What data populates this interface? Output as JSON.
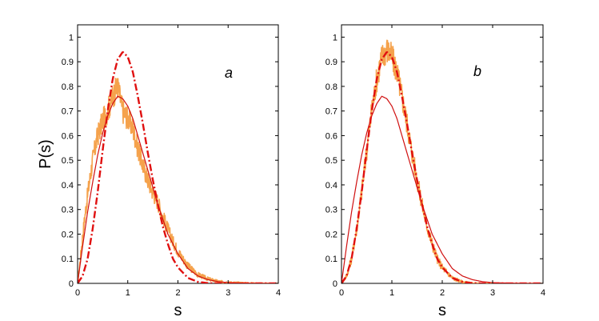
{
  "chart_data": [
    {
      "type": "line",
      "panel_label": "a",
      "xlabel": "s",
      "ylabel": "P(s)",
      "xlim": [
        0,
        4
      ],
      "ylim": [
        0,
        1.05
      ],
      "xticks": [
        "0",
        "1",
        "2",
        "3",
        "4"
      ],
      "yticks": [
        "0",
        "0.1",
        "0.2",
        "0.3",
        "0.4",
        "0.5",
        "0.6",
        "0.7",
        "0.8",
        "0.9",
        "1"
      ],
      "grid": false,
      "series": [
        {
          "style": "noisy-histogram",
          "color": "#f5a24c",
          "x": [
            0,
            0.05,
            0.1,
            0.15,
            0.2,
            0.3,
            0.4,
            0.5,
            0.6,
            0.7,
            0.8,
            0.9,
            1.0,
            1.1,
            1.2,
            1.3,
            1.4,
            1.5,
            1.6,
            1.7,
            1.8,
            1.9,
            2.0,
            2.2,
            2.4,
            2.6,
            2.8,
            3.0,
            3.5,
            4.0
          ],
          "y": [
            0,
            0.09,
            0.19,
            0.28,
            0.36,
            0.5,
            0.6,
            0.66,
            0.7,
            0.76,
            0.8,
            0.7,
            0.67,
            0.63,
            0.55,
            0.48,
            0.42,
            0.37,
            0.33,
            0.27,
            0.22,
            0.17,
            0.13,
            0.07,
            0.035,
            0.018,
            0.008,
            0.004,
            0.001,
            0
          ]
        },
        {
          "style": "solid",
          "color": "#d01010",
          "x": [
            0,
            0.1,
            0.2,
            0.3,
            0.4,
            0.5,
            0.6,
            0.7,
            0.8,
            0.9,
            1.0,
            1.1,
            1.2,
            1.3,
            1.4,
            1.5,
            1.6,
            1.7,
            1.8,
            1.9,
            2.0,
            2.2,
            2.4,
            2.6,
            2.8,
            3.0,
            3.5,
            4.0
          ],
          "y": [
            0,
            0.15,
            0.29,
            0.41,
            0.52,
            0.61,
            0.68,
            0.73,
            0.76,
            0.75,
            0.72,
            0.67,
            0.6,
            0.53,
            0.46,
            0.39,
            0.32,
            0.26,
            0.2,
            0.16,
            0.12,
            0.06,
            0.03,
            0.015,
            0.007,
            0.003,
            0.0003,
            0
          ]
        },
        {
          "style": "dash-dot",
          "color": "#e01010",
          "x": [
            0,
            0.1,
            0.2,
            0.3,
            0.4,
            0.5,
            0.6,
            0.7,
            0.8,
            0.9,
            1.0,
            1.1,
            1.2,
            1.3,
            1.4,
            1.5,
            1.6,
            1.7,
            1.8,
            1.9,
            2.0,
            2.2,
            2.4,
            2.6,
            2.8,
            3.0,
            3.5,
            4.0
          ],
          "y": [
            0,
            0.03,
            0.1,
            0.22,
            0.37,
            0.54,
            0.7,
            0.83,
            0.91,
            0.94,
            0.92,
            0.86,
            0.76,
            0.65,
            0.53,
            0.42,
            0.32,
            0.23,
            0.16,
            0.1,
            0.065,
            0.022,
            0.006,
            0.001,
            0.0002,
            0,
            0,
            0
          ]
        }
      ]
    },
    {
      "type": "line",
      "panel_label": "b",
      "xlabel": "s",
      "ylabel": "",
      "xlim": [
        0,
        4
      ],
      "ylim": [
        0,
        1.05
      ],
      "xticks": [
        "0",
        "1",
        "2",
        "3",
        "4"
      ],
      "yticks": [
        "0",
        "0.1",
        "0.2",
        "0.3",
        "0.4",
        "0.5",
        "0.6",
        "0.7",
        "0.8",
        "0.9",
        "1"
      ],
      "grid": false,
      "series": [
        {
          "style": "noisy-histogram",
          "color": "#f5a24c",
          "x": [
            0,
            0.1,
            0.2,
            0.3,
            0.4,
            0.5,
            0.6,
            0.7,
            0.8,
            0.9,
            1.0,
            1.1,
            1.2,
            1.3,
            1.4,
            1.5,
            1.6,
            1.7,
            1.8,
            1.9,
            2.0,
            2.2,
            2.4,
            2.6,
            2.8,
            3.0,
            3.5,
            4.0
          ],
          "y": [
            0,
            0.03,
            0.1,
            0.22,
            0.37,
            0.54,
            0.7,
            0.83,
            0.92,
            0.95,
            0.92,
            0.86,
            0.76,
            0.65,
            0.53,
            0.42,
            0.32,
            0.23,
            0.16,
            0.1,
            0.065,
            0.022,
            0.006,
            0.001,
            0.0002,
            0,
            0,
            0
          ]
        },
        {
          "style": "solid",
          "color": "#d01010",
          "x": [
            0,
            0.1,
            0.2,
            0.3,
            0.4,
            0.5,
            0.6,
            0.7,
            0.8,
            0.9,
            1.0,
            1.1,
            1.2,
            1.3,
            1.4,
            1.5,
            1.6,
            1.7,
            1.8,
            1.9,
            2.0,
            2.2,
            2.4,
            2.6,
            2.8,
            3.0,
            3.5,
            4.0
          ],
          "y": [
            0,
            0.15,
            0.29,
            0.41,
            0.52,
            0.61,
            0.68,
            0.73,
            0.76,
            0.75,
            0.72,
            0.67,
            0.6,
            0.53,
            0.46,
            0.39,
            0.32,
            0.26,
            0.2,
            0.16,
            0.12,
            0.06,
            0.03,
            0.015,
            0.007,
            0.003,
            0.0003,
            0
          ]
        },
        {
          "style": "dash-dot",
          "color": "#e01010",
          "x": [
            0,
            0.1,
            0.2,
            0.3,
            0.4,
            0.5,
            0.6,
            0.7,
            0.8,
            0.9,
            1.0,
            1.1,
            1.2,
            1.3,
            1.4,
            1.5,
            1.6,
            1.7,
            1.8,
            1.9,
            2.0,
            2.2,
            2.4,
            2.6,
            2.8,
            3.0,
            3.5,
            4.0
          ],
          "y": [
            0,
            0.03,
            0.1,
            0.22,
            0.37,
            0.54,
            0.7,
            0.83,
            0.91,
            0.94,
            0.92,
            0.86,
            0.76,
            0.65,
            0.53,
            0.42,
            0.32,
            0.23,
            0.16,
            0.1,
            0.065,
            0.022,
            0.006,
            0.001,
            0.0002,
            0,
            0,
            0
          ]
        }
      ]
    }
  ]
}
